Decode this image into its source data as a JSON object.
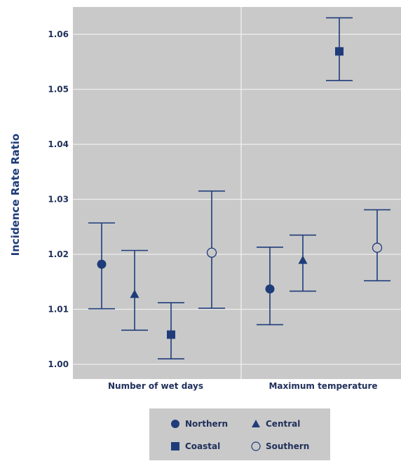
{
  "chart_data": {
    "type": "scatter",
    "subtype": "error-bar",
    "ylabel": "Incidence Rate Ratio",
    "ylim": [
      0.998,
      1.065
    ],
    "yticks": [
      "1.00",
      "1.01",
      "1.02",
      "1.03",
      "1.04",
      "1.05",
      "1.06"
    ],
    "ytick_values": [
      1.0,
      1.01,
      1.02,
      1.03,
      1.04,
      1.05,
      1.06
    ],
    "grid": true,
    "legend_position": "bottom",
    "categories": [
      "Number of wet days",
      "Maximum temperature"
    ],
    "series": [
      {
        "name": "Northern",
        "marker": "circle-filled",
        "values": [
          {
            "est": 1.0182,
            "lo": 1.0101,
            "hi": 1.0257
          },
          {
            "est": 1.0137,
            "lo": 1.0072,
            "hi": 1.0213
          }
        ]
      },
      {
        "name": "Central",
        "marker": "triangle-filled",
        "values": [
          {
            "est": 1.0127,
            "lo": 1.0062,
            "hi": 1.0207
          },
          {
            "est": 1.0189,
            "lo": 1.0133,
            "hi": 1.0235
          }
        ]
      },
      {
        "name": "Coastal",
        "marker": "square-filled",
        "values": [
          {
            "est": 1.0054,
            "lo": 1.001,
            "hi": 1.0112
          },
          {
            "est": 1.0569,
            "lo": 1.0516,
            "hi": 1.063
          }
        ]
      },
      {
        "name": "Southern",
        "marker": "circle-open",
        "values": [
          {
            "est": 1.0203,
            "lo": 1.0102,
            "hi": 1.0315
          },
          null
        ]
      },
      {
        "name": "Southern",
        "marker": "circle-open",
        "legend": false,
        "values": [
          null,
          {
            "est": 1.0212,
            "lo": 1.0152,
            "hi": 1.0281
          }
        ]
      }
    ],
    "colors": {
      "plot_bg": "#c9c9c9",
      "grid": "#eeeeee",
      "marks": "#1f3c7a"
    }
  }
}
